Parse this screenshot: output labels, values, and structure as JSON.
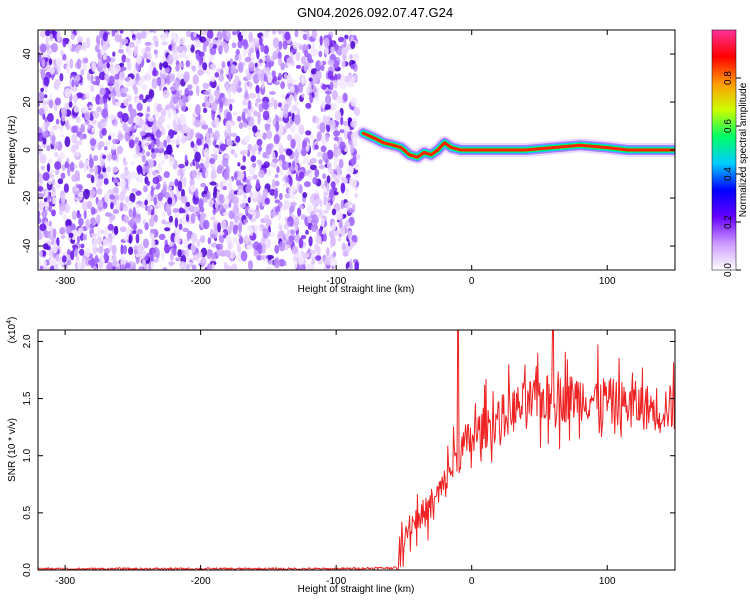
{
  "title": "GN04.2026.092.07.47.G24",
  "chart_data": [
    {
      "type": "heatmap",
      "xlabel": "Height of straight line (km)",
      "ylabel": "Frequency (Hz)",
      "xlim": [
        -320,
        150
      ],
      "ylim": [
        -50,
        50
      ],
      "x_ticks": [
        -300,
        -200,
        -100,
        0,
        100
      ],
      "y_ticks": [
        -40,
        -20,
        0,
        20,
        40
      ],
      "noise_region_x": [
        -320,
        -80
      ],
      "colorbar": {
        "label": "Normalized spectral amplitude",
        "range": [
          0.0,
          1.0
        ],
        "ticks": [
          "0.0",
          "0.2",
          "0.4",
          "0.6",
          "0.8"
        ],
        "tick_values": [
          0.0,
          0.2,
          0.4,
          0.6,
          0.8
        ],
        "colormap": [
          "#ffffff",
          "#cc99ff",
          "#6600ff",
          "#0000ff",
          "#00ccff",
          "#00ff66",
          "#ccff00",
          "#ff9900",
          "#ff0000",
          "#ff3399"
        ]
      },
      "carrier_track": {
        "x": [
          -80,
          -72,
          -65,
          -58,
          -52,
          -46,
          -40,
          -35,
          -30,
          -25,
          -20,
          -15,
          -8,
          0,
          20,
          40,
          60,
          80,
          100,
          115,
          130,
          150
        ],
        "y": [
          7,
          5,
          3,
          2,
          1,
          -2,
          -3,
          -1,
          -2,
          0,
          3,
          1,
          0,
          0,
          0,
          0,
          1,
          2,
          1,
          0,
          0,
          0
        ]
      }
    },
    {
      "type": "line",
      "xlabel": "Height of straight line (km)",
      "ylabel": "SNR (10 * v/v)",
      "y_multiplier": "(x10",
      "y_multiplier_exp": "4",
      "y_multiplier_close": ")",
      "xlim": [
        -320,
        150
      ],
      "ylim": [
        0.0,
        2.1
      ],
      "x_ticks": [
        -300,
        -200,
        -100,
        0,
        100
      ],
      "y_ticks": [
        "0.0",
        "0.5",
        "1.0",
        "1.5",
        "2.0"
      ],
      "y_tick_values": [
        0.0,
        0.5,
        1.0,
        1.5,
        2.0
      ],
      "series": [
        {
          "color": "#ee2222",
          "x": [
            -320,
            -100,
            -55,
            -50,
            -45,
            -40,
            -35,
            -30,
            -25,
            -20,
            -15,
            -10,
            -5,
            0,
            10,
            20,
            30,
            40,
            50,
            60,
            70,
            80,
            90,
            100,
            110,
            120,
            130,
            140,
            150
          ],
          "y": [
            0.01,
            0.01,
            0.02,
            0.3,
            0.4,
            0.45,
            0.5,
            0.55,
            0.65,
            0.75,
            0.9,
            1.0,
            1.1,
            1.15,
            1.25,
            1.32,
            1.4,
            1.45,
            1.5,
            1.5,
            1.5,
            1.52,
            1.5,
            1.48,
            1.45,
            1.45,
            1.42,
            1.42,
            1.42
          ]
        }
      ]
    }
  ]
}
